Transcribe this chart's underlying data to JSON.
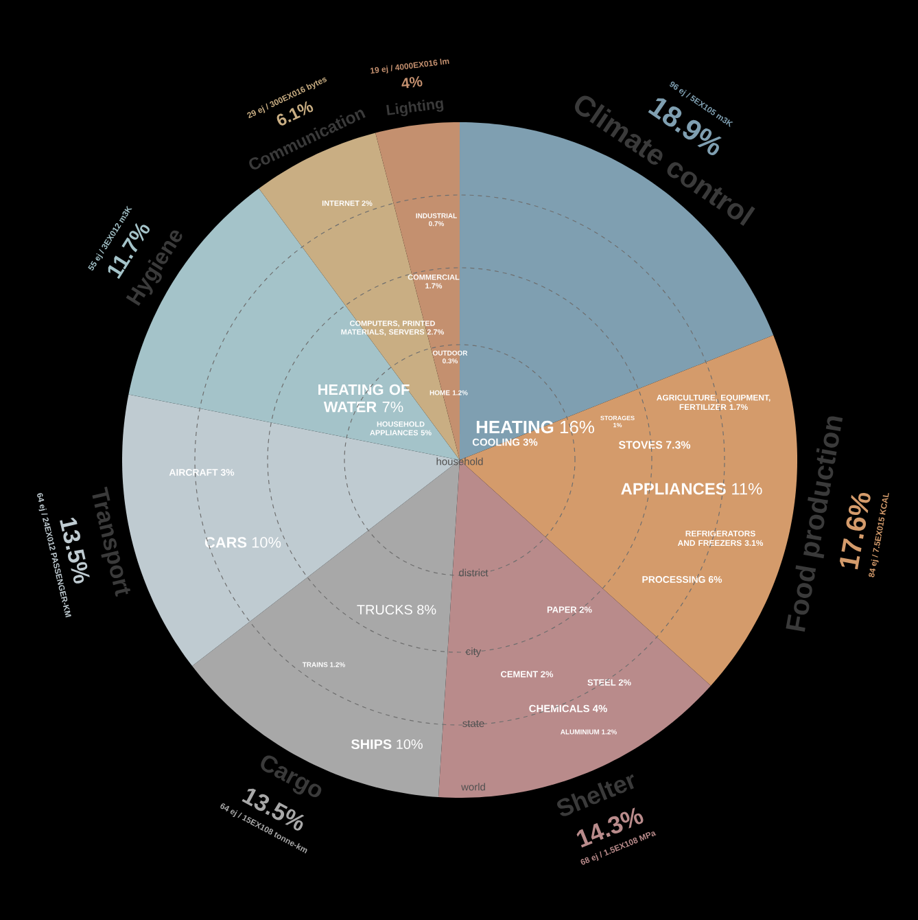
{
  "chart_data": {
    "type": "pie",
    "categories": [
      "Climate control",
      "Food production",
      "Shelter",
      "Cargo",
      "Transport",
      "Hygiene",
      "Communication",
      "Lighting"
    ],
    "values": [
      18.9,
      17.6,
      14.3,
      13.5,
      13.5,
      11.7,
      6.1,
      4
    ],
    "value_labels": [
      "18.9%",
      "17.6%",
      "14.3%",
      "13.5%",
      "13.5%",
      "11.7%",
      "6.1%",
      "4%"
    ],
    "colors": [
      "#7f9fb1",
      "#d49b6b",
      "#b98b8b",
      "#a8a8a8",
      "#bfcbd1",
      "#a4c3c9",
      "#c9ae83",
      "#c4906f"
    ],
    "annotations": [
      "96 ej / 5EX105 m3K",
      "84 ej / 7.5EX015 KCAL",
      "68 ej / 1.5EX108 MPa",
      "64 ej / 15EX108 tonne-km",
      "64 ej / 24EX012 PASSENGER-KM",
      "55 ej / 3EX012 m3K",
      "29 ej / 300EX016 bytes",
      "19 ej / 4000EX016 lm",
      "INTERNET 2%",
      "INDUSTRIAL 0.7%",
      "COMMERCIAL 1.7%",
      "COMPUTERS, PRINTED MATERIALS, SERVERS 2.7%",
      "OUTDOOR 0.3%",
      "HOME 1.2%",
      "**HEATING OF WATER** 7%",
      "HOUSEHOLD APPLIANCES 5%",
      "**HEATING** 16%",
      "COOLING 3%",
      "STORAGES 1%",
      "AGRICULTURE, EQUIPMENT, FERTILIZER 1.7%",
      "STOVES 7.3%",
      "**APPLIANCES** 11%",
      "REFRIGERATORS AND FREEZERS 3.1%",
      "PROCESSING 6%",
      "PAPER 2%",
      "CEMENT 2%",
      "STEEL 2%",
      "CHEMICALS 4%",
      "ALUMINIUM 1.2%",
      "TRUCKS 8%",
      "TRAINS 1.2%",
      "**SHIPS** 10%",
      "**CARS** 10%",
      "AIRCRAFT 3%",
      "household",
      "district",
      "city",
      "state",
      "world"
    ]
  }
}
